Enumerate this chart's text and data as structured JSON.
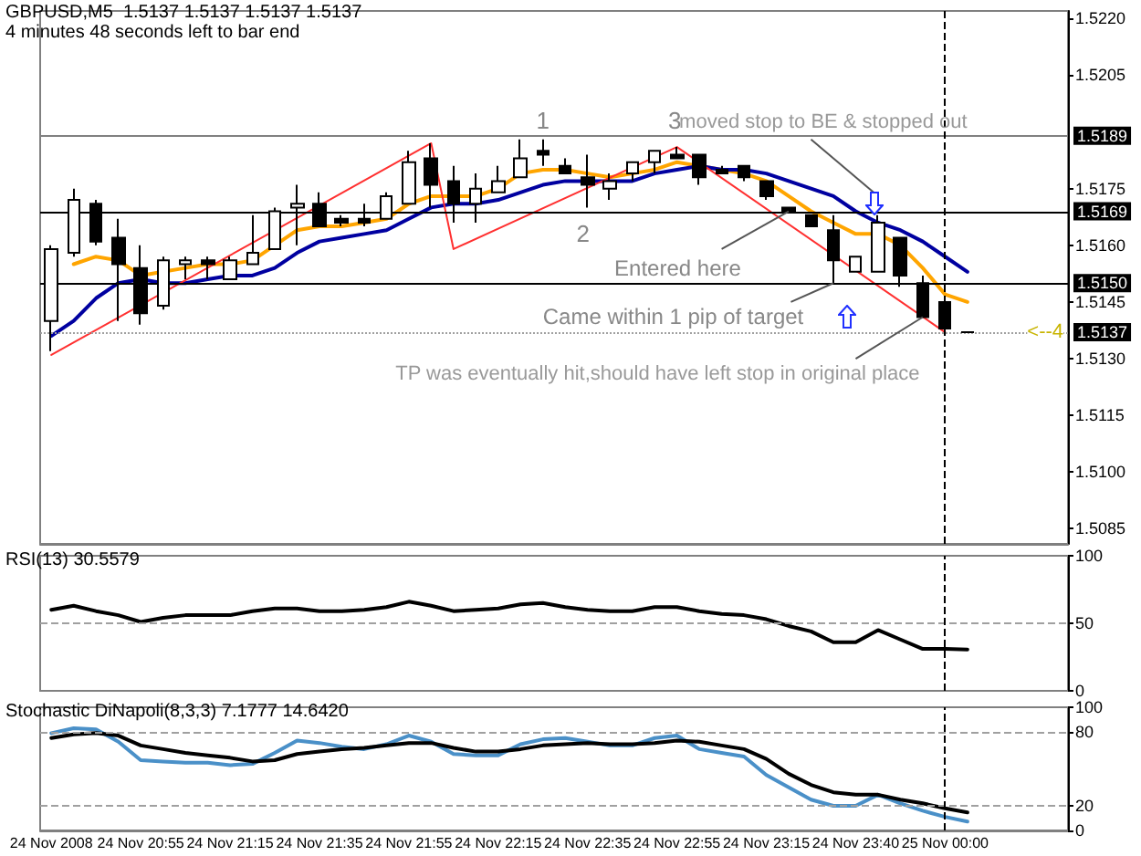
{
  "chart_data": [
    {
      "type": "candlestick",
      "title": "GBPUSD,M5  1.5137 1.5137 1.5137 1.5137",
      "subtitle": "4 minutes 48 seconds left to bar end",
      "categories": [
        null,
        null,
        null,
        null,
        null,
        null,
        null,
        null,
        null,
        null,
        null,
        null,
        null,
        null,
        null,
        null,
        null,
        null,
        null,
        null,
        null,
        null,
        null,
        null,
        null,
        null,
        null,
        null,
        null,
        null,
        null,
        null,
        null,
        null,
        null,
        null,
        null,
        null,
        null,
        null,
        null,
        null
      ],
      "ohlc": [
        [
          1.514,
          1.516,
          1.5132,
          1.5159
        ],
        [
          1.5158,
          1.5175,
          1.5157,
          1.5172
        ],
        [
          1.5171,
          1.5172,
          1.516,
          1.5161
        ],
        [
          1.5162,
          1.5167,
          1.514,
          1.5155
        ],
        [
          1.5154,
          1.516,
          1.5139,
          1.5142
        ],
        [
          1.5144,
          1.5157,
          1.5143,
          1.5156
        ],
        [
          1.5155,
          1.5157,
          1.5151,
          1.5156
        ],
        [
          1.5156,
          1.5157,
          1.5151,
          1.5155
        ],
        [
          1.5151,
          1.5157,
          1.5151,
          1.5156
        ],
        [
          1.5155,
          1.5168,
          1.5155,
          1.5158
        ],
        [
          1.5159,
          1.517,
          1.5159,
          1.5169
        ],
        [
          1.517,
          1.5176,
          1.516,
          1.5171
        ],
        [
          1.5171,
          1.5174,
          1.5165,
          1.5165
        ],
        [
          1.5167,
          1.5168,
          1.5165,
          1.5166
        ],
        [
          1.5167,
          1.5171,
          1.5165,
          1.5166
        ],
        [
          1.5167,
          1.5174,
          1.5167,
          1.5173
        ],
        [
          1.5171,
          1.5185,
          1.5171,
          1.5182
        ],
        [
          1.5183,
          1.5187,
          1.517,
          1.5176
        ],
        [
          1.5177,
          1.5181,
          1.5166,
          1.5171
        ],
        [
          1.5171,
          1.5179,
          1.5166,
          1.5175
        ],
        [
          1.5174,
          1.5181,
          1.5174,
          1.5177
        ],
        [
          1.5178,
          1.5188,
          1.5178,
          1.5183
        ],
        [
          1.5185,
          1.5188,
          1.5181,
          1.5184
        ],
        [
          1.5181,
          1.5183,
          1.5179,
          1.5179
        ],
        [
          1.5178,
          1.5184,
          1.517,
          1.5176
        ],
        [
          1.5175,
          1.5179,
          1.5172,
          1.5177
        ],
        [
          1.5179,
          1.5182,
          1.5177,
          1.5182
        ],
        [
          1.5182,
          1.5185,
          1.5179,
          1.5185
        ],
        [
          1.5184,
          1.5186,
          1.5183,
          1.5183
        ],
        [
          1.5184,
          1.5184,
          1.5176,
          1.5178
        ],
        [
          1.518,
          1.5181,
          1.5179,
          1.5179
        ],
        [
          1.5181,
          1.5181,
          1.5177,
          1.5178
        ],
        [
          1.5177,
          1.5177,
          1.5172,
          1.5173
        ],
        [
          1.517,
          1.517,
          1.5169,
          1.5169
        ],
        [
          1.5168,
          1.5168,
          1.5165,
          1.5165
        ],
        [
          1.5164,
          1.5168,
          1.515,
          1.5156
        ],
        [
          1.5153,
          1.5157,
          1.5153,
          1.5157
        ],
        [
          1.5153,
          1.5168,
          1.5153,
          1.5166
        ],
        [
          1.5162,
          1.5162,
          1.5149,
          1.5152
        ],
        [
          1.515,
          1.5152,
          1.5141,
          1.5141
        ],
        [
          1.5145,
          1.5145,
          1.5137,
          1.5138
        ],
        [
          1.5137,
          1.5137,
          1.5137,
          1.5137
        ]
      ],
      "series": [
        {
          "type": "line",
          "color": "#ffa500",
          "values": [
            null,
            1.5155,
            1.5157,
            1.5156,
            1.5152,
            1.5153,
            1.5154,
            1.5155,
            1.5155,
            1.5156,
            1.516,
            1.5164,
            1.5165,
            1.5165,
            1.5166,
            1.5167,
            1.5171,
            1.5173,
            1.5173,
            1.5173,
            1.5175,
            1.5179,
            1.518,
            1.518,
            1.5179,
            1.5178,
            1.5179,
            1.518,
            1.5182,
            1.5181,
            1.518,
            1.5179,
            1.5177,
            1.5173,
            1.5169,
            1.5166,
            1.5163,
            1.5163,
            1.516,
            1.5154,
            1.5147,
            1.5145
          ]
        },
        {
          "type": "line",
          "color": "#0000a0",
          "values": [
            1.5136,
            1.514,
            1.5146,
            1.515,
            1.5151,
            1.515,
            1.515,
            1.5151,
            1.5152,
            1.5152,
            1.5154,
            1.5158,
            1.5161,
            1.5162,
            1.5163,
            1.5164,
            1.5167,
            1.517,
            1.5171,
            1.5171,
            1.5172,
            1.5174,
            1.5176,
            1.5177,
            1.5177,
            1.5177,
            1.5177,
            1.5179,
            1.518,
            1.5181,
            1.518,
            1.518,
            1.5179,
            1.5177,
            1.5175,
            1.5173,
            1.5169,
            1.5166,
            1.5164,
            1.5161,
            1.5157,
            1.5153
          ]
        },
        {
          "type": "line",
          "color": "#ff3030",
          "values": [
            1.5131,
            null,
            null,
            null,
            null,
            null,
            null,
            null,
            null,
            null,
            null,
            null,
            null,
            null,
            null,
            null,
            null,
            1.5187,
            1.5159,
            null,
            null,
            null,
            null,
            null,
            null,
            null,
            null,
            null,
            1.5186,
            null,
            null,
            null,
            null,
            null,
            null,
            null,
            null,
            null,
            null,
            null,
            1.5137,
            null
          ]
        }
      ],
      "ylim": [
        1.5081,
        1.5222
      ],
      "yticks": [
        1.5085,
        {
          "value": 1.51,
          "label": "1.5100"
        },
        1.5115,
        {
          "value": 1.513,
          "label": "1.5130"
        },
        1.5145,
        {
          "value": 1.516,
          "label": "1.5160"
        },
        1.5175,
        1.5205,
        {
          "value": 1.522,
          "label": "1.5220"
        }
      ],
      "ref_lines": [
        {
          "axis": "y",
          "value": 1.5189,
          "label": "1.5189",
          "color": "#808080",
          "line_style": "solid"
        },
        {
          "axis": "y",
          "value": 1.5169,
          "label": "1.5169",
          "color": "#000000",
          "line_style": "solid"
        },
        {
          "axis": "y",
          "value": 1.515,
          "label": "1.5150",
          "color": "#000000",
          "line_style": "solid"
        },
        {
          "axis": "y",
          "value": 1.5137,
          "label": "1.5137",
          "color": "#a0a0a0",
          "line_style": "dotted"
        }
      ],
      "annotations": [
        "1",
        "2",
        "3",
        {
          "text": "moved stop to BE & stopped out",
          "y": 1.5174
        },
        "Entered here",
        "Came within 1 pip of target",
        "TP was eventually hit,should have left stop in original place",
        "<--4"
      ],
      "marker": "none",
      "tick_labels": "y"
    },
    {
      "type": "line",
      "title": "RSI(13) 30.5579",
      "categories": [
        null,
        null,
        null,
        null,
        null,
        null,
        null,
        null,
        null,
        null,
        null,
        null,
        null,
        null,
        null,
        null,
        null,
        null,
        null,
        null,
        null,
        null,
        null,
        null,
        null,
        null,
        null,
        null,
        null,
        null,
        null,
        null,
        null,
        null,
        null,
        null,
        null,
        null,
        null,
        null,
        null,
        null
      ],
      "series": [
        {
          "color": "#000000",
          "values": [
            60,
            63,
            59,
            56,
            51,
            54,
            56,
            56,
            56,
            59,
            61,
            61,
            59,
            59,
            60,
            62,
            66,
            63,
            59,
            60,
            61,
            64,
            65,
            62,
            60,
            59,
            59,
            62,
            62,
            59,
            57,
            56,
            53,
            48,
            44,
            36,
            36,
            45,
            38,
            31,
            31,
            30.6
          ]
        }
      ],
      "ylim": [
        0,
        100
      ],
      "yticks": [
        0,
        50,
        100
      ],
      "ref_lines": [
        {
          "axis": "y",
          "value": 50,
          "label": null,
          "color": "#a0a0a0",
          "line_style": "dashed"
        }
      ],
      "marker": "none",
      "tick_labels": "y"
    },
    {
      "type": "line",
      "title": "Stochastic DiNapoli(8,3,3) 7.1777 14.6420",
      "categories": [
        "24 Nov 2008",
        null,
        null,
        null,
        "24 Nov 20:55",
        null,
        null,
        null,
        "24 Nov 21:15",
        null,
        null,
        null,
        "24 Nov 21:35",
        null,
        null,
        null,
        "24 Nov 21:55",
        null,
        null,
        null,
        "24 Nov 22:15",
        null,
        null,
        null,
        "24 Nov 22:35",
        null,
        null,
        null,
        "24 Nov 22:55",
        null,
        null,
        null,
        "24 Nov 23:15",
        null,
        null,
        null,
        "24 Nov 23:40",
        null,
        null,
        null,
        "25 Nov 00:00",
        null
      ],
      "series": [
        {
          "color": "#4a90c8",
          "values": [
            79,
            83,
            82,
            72,
            57,
            56,
            55,
            55,
            53,
            54,
            63,
            73,
            71,
            68,
            66,
            70,
            77,
            72,
            62,
            61,
            61,
            70,
            74,
            75,
            72,
            69,
            69,
            75,
            77,
            66,
            63,
            60,
            45,
            35,
            25,
            20,
            20,
            29,
            22,
            16,
            11,
            7.2
          ]
        },
        {
          "color": "#000000",
          "values": [
            75,
            78,
            79,
            77,
            69,
            66,
            63,
            61,
            59,
            56,
            57,
            62,
            64,
            66,
            67,
            69,
            71,
            71,
            67,
            64,
            64,
            66,
            69,
            70,
            71,
            70,
            70,
            71,
            73,
            72,
            69,
            66,
            58,
            46,
            37,
            31,
            29,
            29,
            25,
            22,
            18,
            14.6
          ]
        }
      ],
      "ylim": [
        0,
        100
      ],
      "yticks": [
        0,
        20,
        80,
        100
      ],
      "ref_lines": [
        {
          "axis": "y",
          "value": 80,
          "label": null,
          "color": "#a0a0a0",
          "line_style": "dashed"
        },
        {
          "axis": "y",
          "value": 20,
          "label": null,
          "color": "#a0a0a0",
          "line_style": "dashed"
        },
        {
          "axis": "x",
          "value": "25 Nov 00:00",
          "label": null,
          "color": "#000000",
          "line_style": "dashed"
        }
      ],
      "marker": "none"
    }
  ]
}
